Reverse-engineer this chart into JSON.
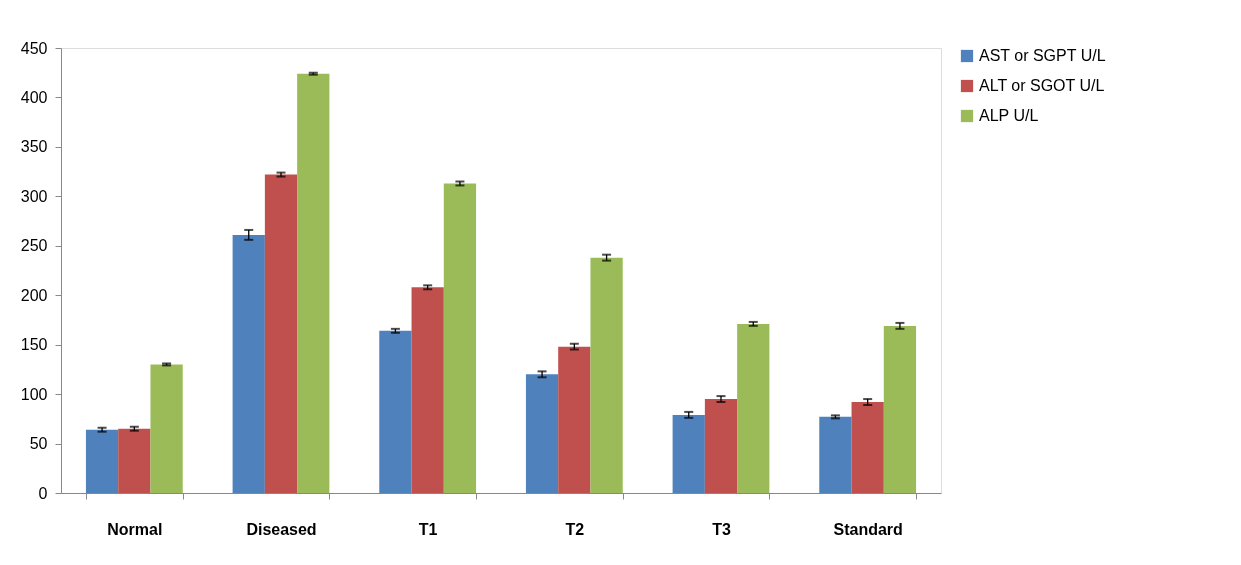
{
  "chart_data": {
    "type": "bar",
    "categories": [
      "Normal",
      "Diseased",
      "T1",
      "T2",
      "T3",
      "Standard"
    ],
    "series": [
      {
        "name": "AST or SGPT U/L",
        "color": "#4f81bd",
        "values": [
          64,
          261,
          164,
          120,
          79,
          77
        ],
        "errors": [
          2,
          5,
          2,
          3,
          3,
          1.5
        ]
      },
      {
        "name": "ALT or SGOT U/L",
        "color": "#c0504d",
        "values": [
          65,
          322,
          208,
          148,
          95,
          92
        ],
        "errors": [
          2,
          2,
          2,
          3,
          3,
          3
        ]
      },
      {
        "name": "ALP U/L",
        "color": "#9bbb59",
        "values": [
          130,
          424,
          313,
          238,
          171,
          169
        ],
        "errors": [
          1,
          1,
          2,
          3,
          2,
          3
        ]
      }
    ],
    "ylim": [
      0,
      450
    ],
    "yticks": [
      0,
      50,
      100,
      150,
      200,
      250,
      300,
      350,
      400,
      450
    ],
    "grid": false,
    "legend": "right"
  }
}
